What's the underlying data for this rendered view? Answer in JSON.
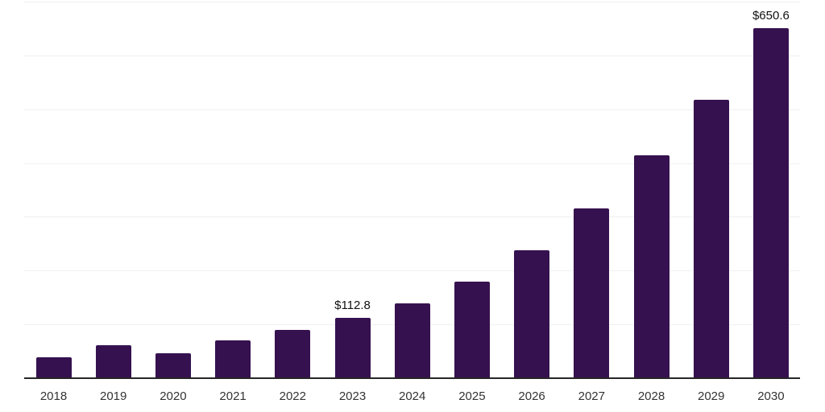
{
  "chart_data": {
    "type": "bar",
    "categories": [
      "2018",
      "2019",
      "2020",
      "2021",
      "2022",
      "2023",
      "2024",
      "2025",
      "2026",
      "2027",
      "2028",
      "2029",
      "2030"
    ],
    "values": [
      39,
      62,
      47,
      70,
      90,
      112.8,
      139,
      179,
      238,
      315,
      414,
      517,
      650.6
    ],
    "point_labels": [
      "",
      "",
      "",
      "",
      "",
      "$112.8",
      "",
      "",
      "",
      "",
      "",
      "",
      "$650.6"
    ],
    "title": "",
    "xlabel": "",
    "ylabel": "",
    "ylim": [
      0,
      700
    ],
    "grid_step": 100,
    "grid": "horizontal-only",
    "legend": "none",
    "colors": {
      "bar": "#36114F",
      "gridline": "#f0f0f0",
      "axis_line": "#262626",
      "tick_label": "#333333",
      "value_label": "#111111",
      "background": "#ffffff"
    }
  }
}
